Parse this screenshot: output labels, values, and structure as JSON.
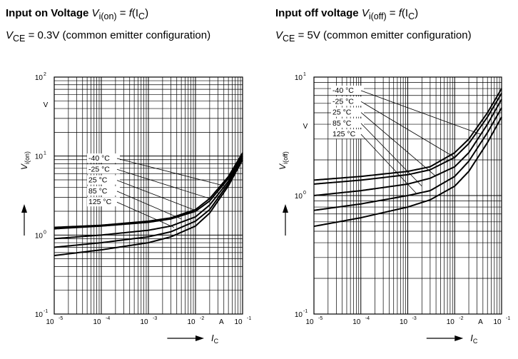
{
  "panels": [
    {
      "title_bold": "Input on Voltage",
      "title_sym": "V",
      "title_sub": "i(on)",
      "title_eq": "= ",
      "title_func": "f",
      "title_arg": "(I",
      "title_arg_sub": "C",
      "title_close": ")",
      "cond_sym": "V",
      "cond_sub": "CE",
      "cond_text": "= 0.3V (common emitter configuration)"
    },
    {
      "title_bold": "Input off voltage",
      "title_sym": "V",
      "title_sub": "i(off)",
      "title_eq": "= ",
      "title_func": "f",
      "title_arg": "(I",
      "title_arg_sub": "C",
      "title_close": ")",
      "cond_sym": "V",
      "cond_sub": "CE",
      "cond_text": "= 5V (common emitter configuration)"
    }
  ],
  "chart_data": [
    {
      "type": "line",
      "x_scale": "log",
      "y_scale": "log",
      "xlim": [
        1e-05,
        0.1
      ],
      "ylim": [
        0.1,
        100
      ],
      "xlabel": "I",
      "xlabel_sub": "C",
      "x_unit": "A",
      "ylabel": "V",
      "ylabel_sub": "i(on)",
      "y_unit": "V",
      "grid": true,
      "x_ticks": [
        {
          "base": "10",
          "exp": "-5"
        },
        {
          "base": "10",
          "exp": "-4"
        },
        {
          "base": "10",
          "exp": "-3"
        },
        {
          "base": "10",
          "exp": "-2"
        },
        {
          "base": "10",
          "exp": "-1"
        }
      ],
      "y_ticks": [
        {
          "base": "10",
          "exp": "-1"
        },
        {
          "base": "10",
          "exp": "0"
        },
        {
          "base": "10",
          "exp": "1"
        },
        {
          "base": "10",
          "exp": "2"
        }
      ],
      "series": [
        {
          "name": "-40 °C",
          "x": [
            1e-05,
            0.0001,
            0.001,
            0.003,
            0.01,
            0.02,
            0.05,
            0.1
          ],
          "y": [
            1.25,
            1.33,
            1.5,
            1.65,
            2.1,
            2.9,
            5.5,
            11
          ]
        },
        {
          "name": "-25 °C",
          "x": [
            1e-05,
            0.0001,
            0.001,
            0.003,
            0.01,
            0.02,
            0.05,
            0.1
          ],
          "y": [
            1.2,
            1.3,
            1.45,
            1.6,
            2.0,
            2.7,
            5.2,
            10.5
          ]
        },
        {
          "name": "25 °C",
          "x": [
            1e-05,
            0.0001,
            0.001,
            0.003,
            0.01,
            0.02,
            0.05,
            0.1
          ],
          "y": [
            0.9,
            1.0,
            1.15,
            1.3,
            1.7,
            2.4,
            4.8,
            10
          ]
        },
        {
          "name": "85 °C",
          "x": [
            1e-05,
            0.0001,
            0.001,
            0.003,
            0.01,
            0.02,
            0.05,
            0.1
          ],
          "y": [
            0.7,
            0.8,
            0.95,
            1.1,
            1.5,
            2.1,
            4.5,
            9.5
          ]
        },
        {
          "name": "125 °C",
          "x": [
            1e-05,
            0.0001,
            0.001,
            0.003,
            0.01,
            0.02,
            0.05,
            0.1
          ],
          "y": [
            0.55,
            0.65,
            0.8,
            0.95,
            1.3,
            1.9,
            4.2,
            9
          ]
        }
      ],
      "callout_targets": [
        [
          0.035,
          4.3
        ],
        [
          0.02,
          2.9
        ],
        [
          0.01,
          2.05
        ],
        [
          0.005,
          1.6
        ],
        [
          0.0035,
          1.25
        ]
      ]
    },
    {
      "type": "line",
      "x_scale": "log",
      "y_scale": "log",
      "xlim": [
        1e-05,
        0.1
      ],
      "ylim": [
        0.1,
        10
      ],
      "xlabel": "I",
      "xlabel_sub": "C",
      "x_unit": "A",
      "ylabel": "V",
      "ylabel_sub": "i(off)",
      "y_unit": "V",
      "grid": true,
      "x_ticks": [
        {
          "base": "10",
          "exp": "-5"
        },
        {
          "base": "10",
          "exp": "-4"
        },
        {
          "base": "10",
          "exp": "-3"
        },
        {
          "base": "10",
          "exp": "-2"
        },
        {
          "base": "10",
          "exp": "-1"
        }
      ],
      "y_ticks": [
        {
          "base": "10",
          "exp": "-1"
        },
        {
          "base": "10",
          "exp": "0"
        },
        {
          "base": "10",
          "exp": "1"
        }
      ],
      "series": [
        {
          "name": "-40 °C",
          "x": [
            1e-05,
            0.0001,
            0.001,
            0.003,
            0.01,
            0.02,
            0.05,
            0.1
          ],
          "y": [
            1.35,
            1.45,
            1.6,
            1.75,
            2.3,
            3.0,
            5.0,
            8.0
          ]
        },
        {
          "name": "-25 °C",
          "x": [
            1e-05,
            0.0001,
            0.001,
            0.003,
            0.01,
            0.02,
            0.05,
            0.1
          ],
          "y": [
            1.25,
            1.35,
            1.5,
            1.65,
            2.1,
            2.75,
            4.6,
            7.3
          ]
        },
        {
          "name": "25 °C",
          "x": [
            1e-05,
            0.0001,
            0.001,
            0.003,
            0.01,
            0.02,
            0.05,
            0.1
          ],
          "y": [
            1.0,
            1.1,
            1.25,
            1.4,
            1.75,
            2.3,
            4.0,
            6.5
          ]
        },
        {
          "name": "85 °C",
          "x": [
            1e-05,
            0.0001,
            0.001,
            0.003,
            0.01,
            0.02,
            0.05,
            0.1
          ],
          "y": [
            0.75,
            0.85,
            1.0,
            1.1,
            1.45,
            1.95,
            3.4,
            5.5
          ]
        },
        {
          "name": "125 °C",
          "x": [
            1e-05,
            0.0001,
            0.001,
            0.003,
            0.01,
            0.02,
            0.05,
            0.1
          ],
          "y": [
            0.55,
            0.65,
            0.8,
            0.92,
            1.2,
            1.6,
            2.8,
            4.6
          ]
        }
      ],
      "callout_targets": [
        [
          0.035,
          3.3
        ],
        [
          0.01,
          2.1
        ],
        [
          0.004,
          1.45
        ],
        [
          0.002,
          1.2
        ],
        [
          0.0015,
          1.05
        ]
      ]
    }
  ]
}
